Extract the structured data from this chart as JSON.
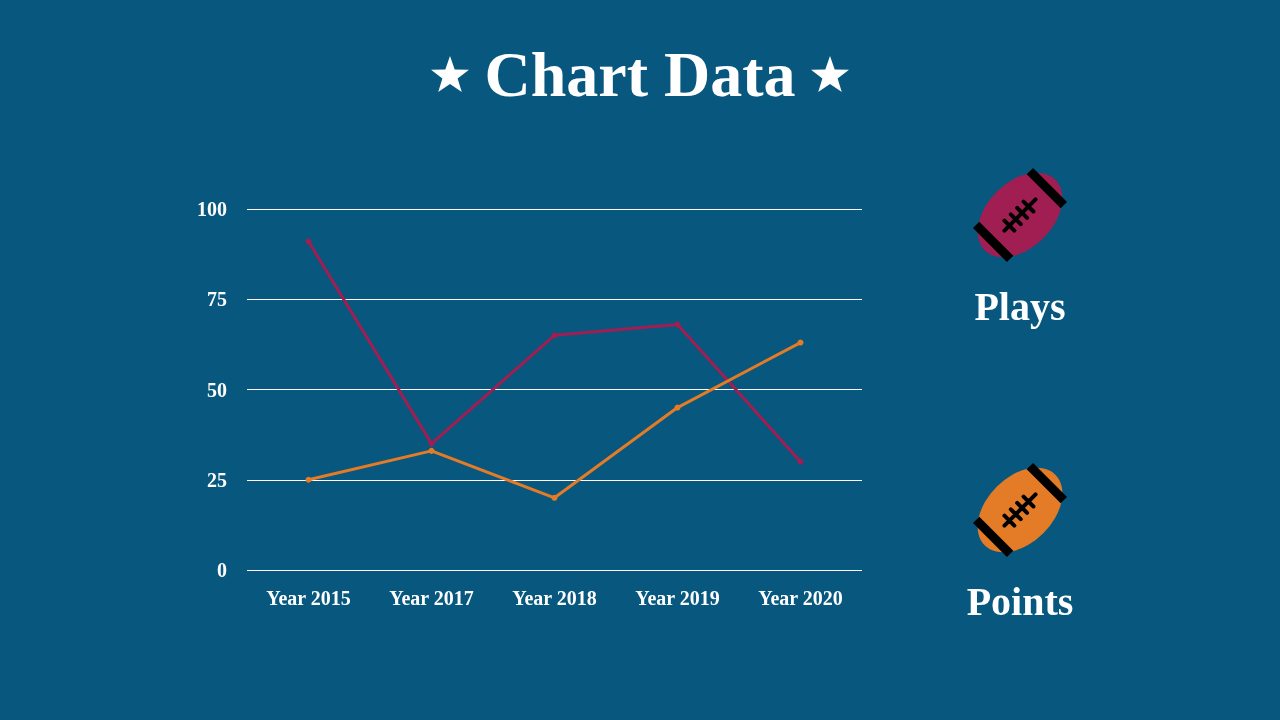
{
  "chart_data": {
    "type": "line",
    "title": "Chart Data",
    "categories": [
      "Year 2015",
      "Year 2017",
      "Year 2018",
      "Year 2019",
      "Year 2020"
    ],
    "series": [
      {
        "name": "Plays",
        "color": "#a01e52",
        "values": [
          91,
          35,
          65,
          68,
          30
        ]
      },
      {
        "name": "Points",
        "color": "#e47b26",
        "values": [
          25,
          33,
          20,
          45,
          63
        ]
      }
    ],
    "ylim": [
      0,
      100
    ],
    "yticks": [
      0,
      25,
      50,
      75,
      100
    ],
    "grid": "y",
    "legend": "right",
    "marker": "circle",
    "line_style": "solid"
  }
}
